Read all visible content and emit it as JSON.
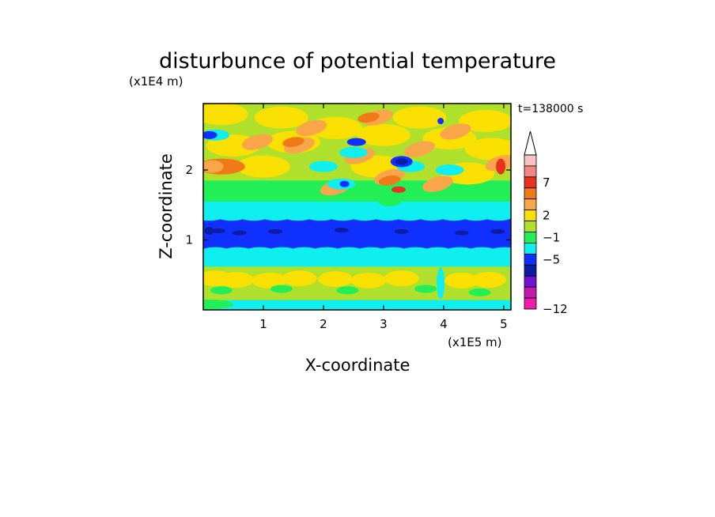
{
  "chart_data": {
    "type": "heatmap",
    "title": "disturbunce of potential temperature",
    "xlabel": "X-coordinate",
    "ylabel": "Z-coordinate",
    "x_unit": "(x1E5 m)",
    "y_unit": "(x1E4 m)",
    "time_label": "t=138000 s",
    "xlim": [
      0,
      5.12
    ],
    "ylim": [
      0,
      2.95
    ],
    "x_ticks": [
      "1",
      "2",
      "3",
      "4",
      "5"
    ],
    "x_tick_values": [
      1,
      2,
      3,
      4,
      5
    ],
    "y_ticks": [
      "1",
      "2"
    ],
    "y_tick_values": [
      1,
      2
    ],
    "colorbar": {
      "labels": [
        "7",
        "2",
        "−1",
        "−5",
        "−12"
      ],
      "label_values": [
        7,
        2,
        -1,
        -5,
        -12
      ],
      "levels_top_to_bottom": [
        {
          "color": "#f7c3c3"
        },
        {
          "color": "#f48585"
        },
        {
          "color": "#e8321e"
        },
        {
          "color": "#f07a18"
        },
        {
          "color": "#f9a64a"
        },
        {
          "color": "#f9e000"
        },
        {
          "color": "#aee02c"
        },
        {
          "color": "#22ee55"
        },
        {
          "color": "#0fefef"
        },
        {
          "color": "#1030ff"
        },
        {
          "color": "#0e1ca0"
        },
        {
          "color": "#7013d0"
        },
        {
          "color": "#c01ab0"
        },
        {
          "color": "#f31caa"
        }
      ],
      "extend_top": true
    },
    "layers_bottom_to_top": [
      {
        "z_range": [
          0.0,
          0.14
        ],
        "level": "cyan-green"
      },
      {
        "z_range": [
          0.14,
          0.62
        ],
        "level": "yellow-green bands"
      },
      {
        "z_range": [
          0.62,
          0.84
        ],
        "level": "cyan"
      },
      {
        "z_range": [
          0.84,
          1.32
        ],
        "level": "blue"
      },
      {
        "z_range": [
          1.32,
          1.55
        ],
        "level": "cyan/green"
      },
      {
        "z_range": [
          1.55,
          2.95
        ],
        "level": "green/yellow/orange waves"
      }
    ]
  }
}
